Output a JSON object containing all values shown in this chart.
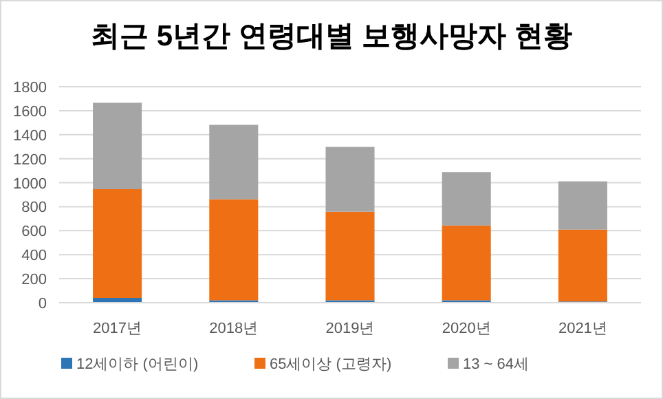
{
  "chart_data": {
    "type": "bar",
    "title": "최근 5년간 연령대별 보행사망자 현황",
    "categories": [
      "2017년",
      "2018년",
      "2019년",
      "2020년",
      "2021년"
    ],
    "series": [
      {
        "name": "12세이하 (어린이)",
        "color": "#2e75b6",
        "values": [
          40,
          20,
          20,
          20,
          10
        ]
      },
      {
        "name": "65세이상 (고령자)",
        "color": "#ef7014",
        "values": [
          906,
          842,
          738,
          623,
          599
        ]
      },
      {
        "name": "13 ~ 64세",
        "color": "#a5a5a5",
        "values": [
          720,
          620,
          540,
          445,
          402
        ]
      }
    ],
    "stacked": true,
    "ylim": [
      0,
      1800
    ],
    "yticks": [
      0,
      200,
      400,
      600,
      800,
      1000,
      1200,
      1400,
      1600,
      1800
    ],
    "grid": "y",
    "legend": "bottom"
  }
}
